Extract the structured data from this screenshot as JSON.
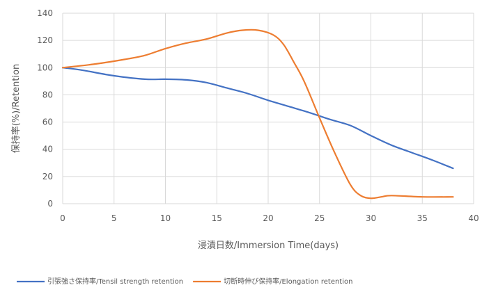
{
  "chart_data": {
    "type": "line",
    "title": "",
    "xlabel": "浸漬日数/Immersion Time(days)",
    "ylabel": "保持率(%)/Retention",
    "xlim": [
      0,
      40
    ],
    "ylim": [
      0,
      140
    ],
    "x_ticks": [
      0,
      5,
      10,
      15,
      20,
      25,
      30,
      35,
      40
    ],
    "y_ticks": [
      0,
      20,
      40,
      60,
      80,
      100,
      120,
      140
    ],
    "grid": true,
    "legend_position": "bottom",
    "series": [
      {
        "name": "引張強さ保持率/Tensil strength retention",
        "color": "#4472C4",
        "points": [
          [
            0,
            100
          ],
          [
            2,
            98
          ],
          [
            5,
            94
          ],
          [
            8,
            91.5
          ],
          [
            10,
            91.5
          ],
          [
            12,
            91
          ],
          [
            14,
            89
          ],
          [
            16,
            85
          ],
          [
            18,
            81
          ],
          [
            20,
            76
          ],
          [
            22,
            71.5
          ],
          [
            24,
            67
          ],
          [
            26,
            62
          ],
          [
            28,
            57.5
          ],
          [
            30,
            50
          ],
          [
            32,
            43
          ],
          [
            34,
            37.5
          ],
          [
            36,
            32
          ],
          [
            38,
            26
          ]
        ]
      },
      {
        "name": "切断時伸び保持率/Elongation retention",
        "color": "#ED7D31",
        "points": [
          [
            0,
            100
          ],
          [
            3,
            102.5
          ],
          [
            6,
            106
          ],
          [
            8,
            109
          ],
          [
            10,
            114
          ],
          [
            12,
            118
          ],
          [
            14,
            121
          ],
          [
            16,
            125.5
          ],
          [
            17.5,
            127.5
          ],
          [
            19,
            127.5
          ],
          [
            20.5,
            124
          ],
          [
            21.5,
            117
          ],
          [
            22.5,
            104
          ],
          [
            23.5,
            90
          ],
          [
            25,
            63
          ],
          [
            26.5,
            37
          ],
          [
            28,
            14
          ],
          [
            29,
            6
          ],
          [
            30,
            4
          ],
          [
            31,
            5
          ],
          [
            32,
            6
          ],
          [
            35,
            5
          ],
          [
            38,
            5
          ]
        ]
      }
    ]
  }
}
